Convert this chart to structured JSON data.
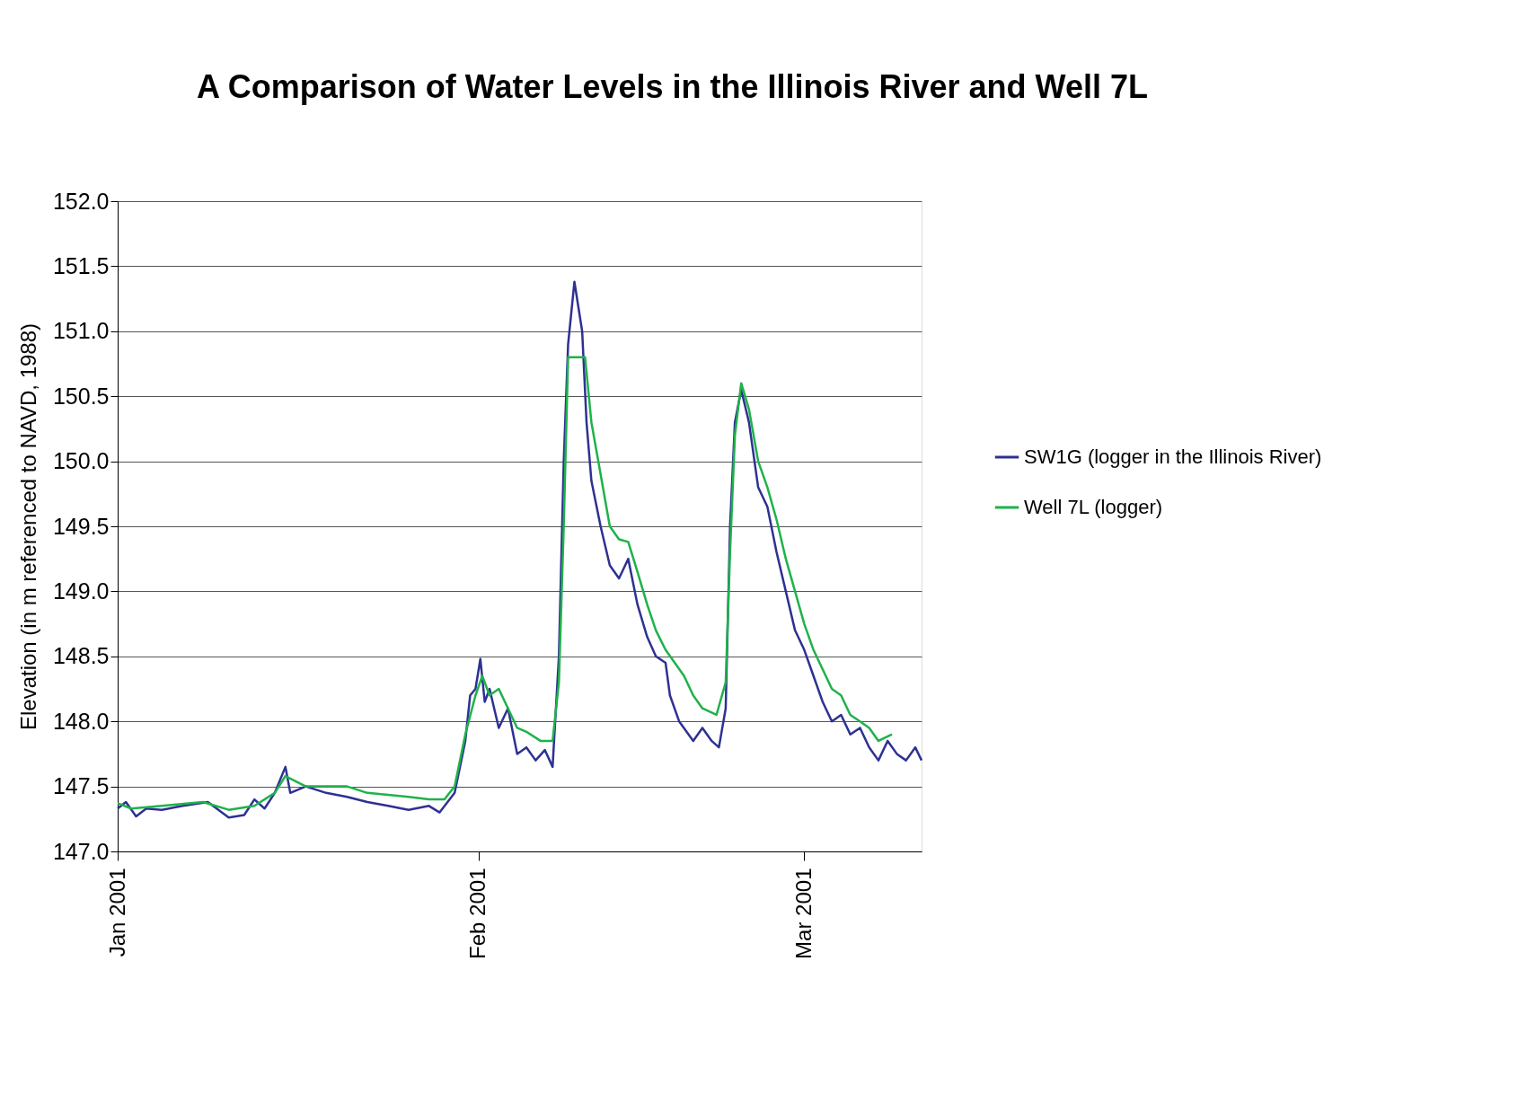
{
  "chart_data": {
    "type": "line",
    "title": "A Comparison of Water Levels in the Illinois River and Well 7L",
    "ylabel": "Elevation (in m referenced to NAVD, 1988)",
    "xlim": [
      "2001-01-01T00:00",
      "2001-03-11T02:00"
    ],
    "xticks": [
      {
        "value": "2001-01-01T00:00",
        "label": "Jan 2001"
      },
      {
        "value": "2001-02-01T00:00",
        "label": "Feb 2001"
      },
      {
        "value": "2001-03-01T00:00",
        "label": "Mar 2001"
      }
    ],
    "ylim": [
      147.0,
      152.0
    ],
    "yticks": [
      {
        "value": 147,
        "label": "147.0"
      },
      147.5,
      {
        "value": 148,
        "label": "148.0"
      },
      148.5,
      {
        "value": 149,
        "label": "149.0"
      },
      149.5,
      {
        "value": 150,
        "label": "150.0"
      },
      150.5,
      {
        "value": 151,
        "label": "151.0"
      },
      151.5,
      {
        "value": 152,
        "label": "152.0"
      }
    ],
    "grid": "y",
    "legend": "right",
    "marker": "none",
    "line_style": "solid",
    "series": [
      {
        "name": "SW1G (logger in the Illinois River)",
        "color": "#2e3192",
        "x": [
          "2001-01-01T00:00",
          "2001-01-01T17:00",
          "2001-01-02T14:00",
          "2001-01-03T11:00",
          "2001-01-04T19:00",
          "2001-01-06T14:00",
          "2001-01-08T18:00",
          "2001-01-10T13:00",
          "2001-01-11T21:00",
          "2001-01-12T18:00",
          "2001-01-13T15:00",
          "2001-01-14T12:00",
          "2001-01-15T10:00",
          "2001-01-15T20:00",
          "2001-01-17T04:00",
          "2001-01-18T22:00",
          "2001-01-20T17:00",
          "2001-01-22T11:00",
          "2001-01-24T06:00",
          "2001-01-26T00:00",
          "2001-01-27T18:00",
          "2001-01-28T16:00",
          "2001-01-29T23:00",
          "2001-01-30T21:00",
          "2001-01-31T07:00",
          "2001-01-31T18:00",
          "2001-02-01T04:00",
          "2001-02-01T13:00",
          "2001-02-01T23:00",
          "2001-02-02T18:00",
          "2001-02-03T13:00",
          "2001-02-04T08:00",
          "2001-02-05T03:00",
          "2001-02-05T22:00",
          "2001-02-06T17:00",
          "2001-02-07T09:00",
          "2001-02-07T22:00",
          "2001-02-08T08:00",
          "2001-02-08T17:00",
          "2001-02-09T06:00",
          "2001-02-09T22:00",
          "2001-02-10T07:00",
          "2001-02-10T17:00",
          "2001-02-11T12:00",
          "2001-02-12T07:00",
          "2001-02-13T02:00",
          "2001-02-13T21:00",
          "2001-02-14T16:00",
          "2001-02-15T12:00",
          "2001-02-16T06:00",
          "2001-02-17T02:00",
          "2001-02-17T11:00",
          "2001-02-18T06:00",
          "2001-02-19T11:00",
          "2001-02-20T06:00",
          "2001-02-21T01:00",
          "2001-02-21T16:00",
          "2001-02-22T06:00",
          "2001-02-22T15:00",
          "2001-02-23T01:00",
          "2001-02-23T14:00",
          "2001-02-24T06:00",
          "2001-02-25T01:00",
          "2001-02-25T20:00",
          "2001-02-26T15:00",
          "2001-02-27T10:00",
          "2001-02-28T05:00",
          "2001-03-01T00:00",
          "2001-03-01T19:00",
          "2001-03-02T14:00",
          "2001-03-03T09:00",
          "2001-03-04T04:00",
          "2001-03-04T23:00",
          "2001-03-05T19:00",
          "2001-03-06T14:00",
          "2001-03-07T09:00",
          "2001-03-08T04:00",
          "2001-03-08T23:00",
          "2001-03-09T18:00",
          "2001-03-10T13:00",
          "2001-03-11T02:00"
        ],
        "values": [
          147.33,
          147.38,
          147.27,
          147.33,
          147.32,
          147.35,
          147.38,
          147.26,
          147.28,
          147.4,
          147.33,
          147.45,
          147.65,
          147.45,
          147.5,
          147.45,
          147.42,
          147.38,
          147.35,
          147.32,
          147.35,
          147.3,
          147.45,
          147.85,
          148.2,
          148.25,
          148.48,
          148.15,
          148.25,
          147.95,
          148.1,
          147.75,
          147.8,
          147.7,
          147.78,
          147.65,
          148.5,
          150.0,
          150.9,
          151.38,
          151.0,
          150.3,
          149.85,
          149.5,
          149.2,
          149.1,
          149.25,
          148.9,
          148.65,
          148.5,
          148.45,
          148.2,
          148.0,
          147.85,
          147.95,
          147.85,
          147.8,
          148.1,
          149.5,
          150.3,
          150.55,
          150.3,
          149.8,
          149.65,
          149.3,
          149.0,
          148.7,
          148.55,
          148.35,
          148.15,
          148.0,
          148.05,
          147.9,
          147.95,
          147.8,
          147.7,
          147.85,
          147.75,
          147.7,
          147.8,
          147.7
        ]
      },
      {
        "name": "Well 7L (logger)",
        "color": "#1fb24a",
        "x": [
          "2001-01-01T00:00",
          "2001-01-02T04:00",
          "2001-01-04T19:00",
          "2001-01-08T08:00",
          "2001-01-10T13:00",
          "2001-01-12T18:00",
          "2001-01-14T12:00",
          "2001-01-15T10:00",
          "2001-01-17T04:00",
          "2001-01-20T17:00",
          "2001-01-22T11:00",
          "2001-01-26T00:00",
          "2001-01-27T18:00",
          "2001-01-29T02:00",
          "2001-01-29T23:00",
          "2001-01-30T21:00",
          "2001-01-31T18:00",
          "2001-02-01T08:00",
          "2001-02-01T23:00",
          "2001-02-02T18:00",
          "2001-02-03T13:00",
          "2001-02-04T08:00",
          "2001-02-05T03:00",
          "2001-02-06T08:00",
          "2001-02-07T09:00",
          "2001-02-07T22:00",
          "2001-02-08T08:00",
          "2001-02-08T17:00",
          "2001-02-10T04:00",
          "2001-02-10T17:00",
          "2001-02-11T12:00",
          "2001-02-12T07:00",
          "2001-02-13T02:00",
          "2001-02-13T21:00",
          "2001-02-14T16:00",
          "2001-02-15T12:00",
          "2001-02-16T06:00",
          "2001-02-17T02:00",
          "2001-02-17T21:00",
          "2001-02-18T16:00",
          "2001-02-19T11:00",
          "2001-02-20T06:00",
          "2001-02-21T11:00",
          "2001-02-22T06:00",
          "2001-02-22T15:00",
          "2001-02-23T01:00",
          "2001-02-23T14:00",
          "2001-02-24T06:00",
          "2001-02-25T01:00",
          "2001-02-25T20:00",
          "2001-02-26T15:00",
          "2001-02-27T10:00",
          "2001-02-28T05:00",
          "2001-03-01T00:00",
          "2001-03-01T19:00",
          "2001-03-02T14:00",
          "2001-03-03T09:00",
          "2001-03-04T04:00",
          "2001-03-04T23:00",
          "2001-03-05T19:00",
          "2001-03-06T14:00",
          "2001-03-07T09:00",
          "2001-03-08T13:00"
        ],
        "values": [
          147.37,
          147.33,
          147.35,
          147.38,
          147.32,
          147.35,
          147.45,
          147.58,
          147.5,
          147.5,
          147.45,
          147.42,
          147.4,
          147.4,
          147.5,
          147.9,
          148.2,
          148.35,
          148.2,
          148.25,
          148.1,
          147.95,
          147.92,
          147.85,
          147.85,
          148.3,
          149.5,
          150.8,
          150.8,
          150.3,
          149.9,
          149.5,
          149.4,
          149.38,
          149.15,
          148.9,
          148.7,
          148.55,
          148.45,
          148.35,
          148.2,
          148.1,
          148.05,
          148.3,
          149.3,
          150.2,
          150.6,
          150.4,
          150.0,
          149.8,
          149.55,
          149.25,
          149.0,
          148.75,
          148.55,
          148.4,
          148.25,
          148.2,
          148.05,
          148.0,
          147.95,
          147.85,
          147.9
        ]
      }
    ]
  }
}
